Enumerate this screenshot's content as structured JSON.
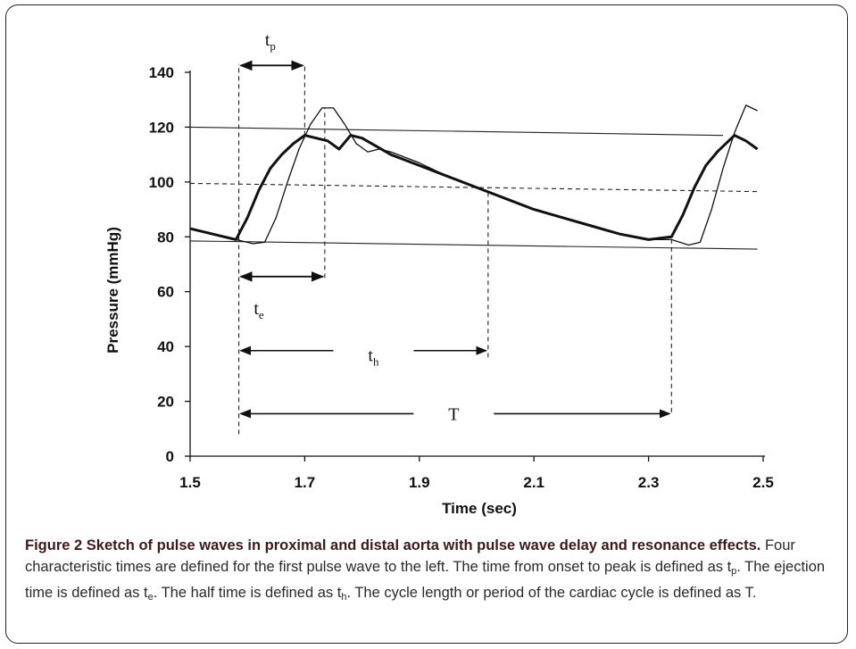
{
  "chart_data": {
    "type": "line",
    "xlabel": "Time (sec)",
    "ylabel": "Pressure (mmHg)",
    "xlim": [
      1.5,
      2.5
    ],
    "ylim": [
      0,
      140
    ],
    "x_ticks": [
      "1.5",
      "1.7",
      "1.9",
      "2.1",
      "2.3",
      "2.5"
    ],
    "y_ticks": [
      "0",
      "20",
      "40",
      "60",
      "80",
      "100",
      "120",
      "140"
    ],
    "series": [
      {
        "values_x": [
          1.5,
          1.55,
          1.58,
          1.6,
          1.62,
          1.64,
          1.66,
          1.68,
          1.7,
          1.72,
          1.74,
          1.76,
          1.78,
          1.8,
          1.85,
          1.9,
          1.95,
          2.0,
          2.05,
          2.1,
          2.15,
          2.2,
          2.25,
          2.3,
          2.34,
          2.36,
          2.38,
          2.4,
          2.42,
          2.45,
          2.47,
          2.49
        ],
        "values_y": [
          83,
          80.5,
          79,
          87,
          97,
          105,
          110,
          114,
          117,
          116,
          115,
          112,
          117,
          116,
          110,
          106,
          102,
          98,
          94,
          90,
          87,
          84,
          81,
          79,
          80,
          88,
          98,
          106,
          111,
          117,
          115,
          112
        ]
      },
      {
        "values_x": [
          1.5,
          1.55,
          1.58,
          1.61,
          1.63,
          1.65,
          1.67,
          1.69,
          1.71,
          1.73,
          1.75,
          1.77,
          1.79,
          1.81,
          1.83,
          1.85,
          1.9,
          1.95,
          2.0,
          2.05,
          2.1,
          2.15,
          2.2,
          2.25,
          2.3,
          2.34,
          2.37,
          2.39,
          2.41,
          2.43,
          2.45,
          2.47,
          2.49
        ],
        "values_y": [
          83,
          80.5,
          79,
          77.5,
          78,
          87,
          100,
          112,
          121,
          127,
          127,
          121,
          114,
          111,
          112,
          111,
          107,
          102,
          98,
          94,
          90,
          87,
          84,
          81,
          79,
          79,
          77,
          78,
          90,
          105,
          118,
          128,
          126
        ]
      }
    ],
    "reference_lines": [
      {
        "style": "solid",
        "from": [
          1.5,
          120
        ],
        "to": [
          2.43,
          117
        ]
      },
      {
        "style": "solid",
        "from": [
          1.5,
          78.5
        ],
        "to": [
          2.49,
          75.5
        ]
      },
      {
        "style": "dashed",
        "from": [
          1.5,
          99.5
        ],
        "to": [
          2.49,
          96.5
        ]
      }
    ],
    "vertical_markers": [
      {
        "x": 1.585,
        "y_from": 8,
        "y_to": 143
      },
      {
        "x": 1.7,
        "y_from": 117,
        "y_to": 143
      },
      {
        "x": 1.735,
        "y_from": 65,
        "y_to": 127
      },
      {
        "x": 2.02,
        "y_from": 36,
        "y_to": 98
      },
      {
        "x": 2.34,
        "y_from": 16,
        "y_to": 79
      }
    ],
    "interval_annotations": [
      {
        "label": "t",
        "sub": "p",
        "x_from": 1.585,
        "x_to": 1.7,
        "y": 142.5,
        "label_x": 1.64,
        "label_y": 152,
        "gap": false
      },
      {
        "label": "t",
        "sub": "e",
        "x_from": 1.585,
        "x_to": 1.735,
        "y": 65.5,
        "label_x": 1.62,
        "label_y": 54,
        "gap": false
      },
      {
        "label": "t",
        "sub": "h",
        "x_from": 1.585,
        "x_to": 2.02,
        "y": 38.5,
        "label_x": 1.82,
        "label_y": 37,
        "gap": true
      },
      {
        "label": "T",
        "sub": "",
        "x_from": 1.585,
        "x_to": 2.34,
        "y": 15.5,
        "label_x": 1.96,
        "label_y": 15.5,
        "gap": true
      }
    ]
  },
  "caption": {
    "title": "Figure 2 Sketch of pulse waves in proximal and distal aorta with pulse wave delay and resonance effects.",
    "s1": "Four characteristic times are defined for the first pulse wave to the left. The time from onset to peak is defined as t",
    "s1_sub": "p",
    "s2": ". The ejection time is defined as t",
    "s2_sub": "e",
    "s3": ". The half time is defined as t",
    "s3_sub": "h",
    "s4": ". The cycle length or period of the cardiac cycle is defined as T."
  }
}
